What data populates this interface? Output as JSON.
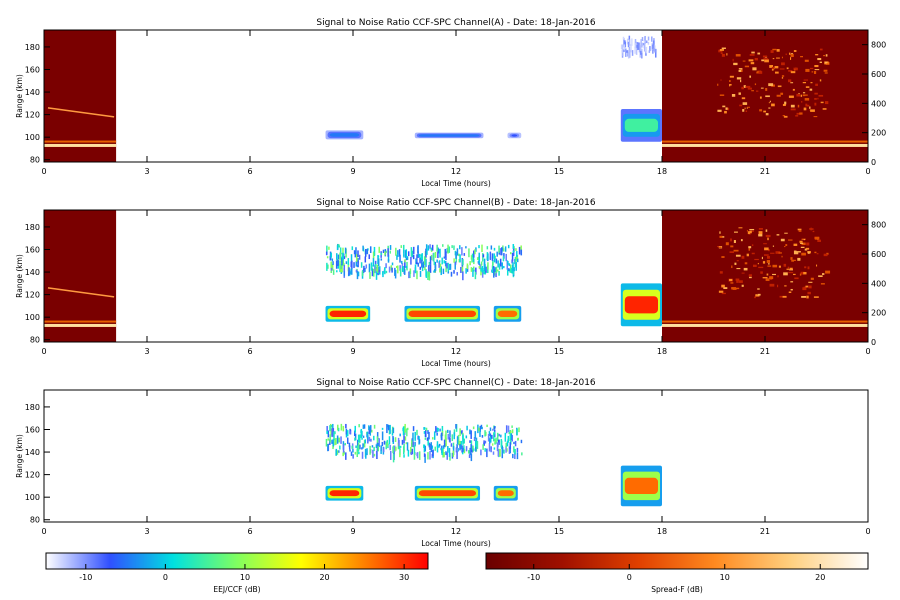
{
  "chart_data": [
    {
      "type": "heatmap",
      "title": "Signal to Noise Ratio CCF-SPC Channel(A) - Date: 18-Jan-2016",
      "xlabel": "Local Time (hours)",
      "ylabel": "Range (km)",
      "xlim": [
        0,
        24
      ],
      "ylim": [
        78,
        195
      ],
      "x_ticks": [
        "0",
        "3",
        "6",
        "9",
        "12",
        "15",
        "18",
        "21",
        "0"
      ],
      "y_ticks": [
        80,
        100,
        120,
        140,
        160,
        180
      ],
      "right_axis": {
        "ylim": [
          0,
          900
        ],
        "ticks": [
          0,
          200,
          400,
          600,
          800
        ]
      },
      "spreadf_panels": [
        [
          0,
          2.1
        ],
        [
          18,
          24
        ]
      ],
      "features": [
        {
          "kind": "layer",
          "x": [
            8.2,
            9.3
          ],
          "y": [
            98,
            106
          ],
          "level": 0.25
        },
        {
          "kind": "layer",
          "x": [
            10.8,
            12.8
          ],
          "y": [
            99,
            104
          ],
          "level": 0.25
        },
        {
          "kind": "layer",
          "x": [
            13.5,
            13.9
          ],
          "y": [
            99,
            104
          ],
          "level": 0.2
        },
        {
          "kind": "layer",
          "x": [
            16.8,
            18.0
          ],
          "y": [
            96,
            125
          ],
          "level": 0.45
        },
        {
          "kind": "patchy",
          "x": [
            16.8,
            17.8
          ],
          "y": [
            175,
            190
          ],
          "level": 0.12
        }
      ]
    },
    {
      "type": "heatmap",
      "title": "Signal to Noise Ratio CCF-SPC Channel(B) - Date: 18-Jan-2016",
      "xlabel": "Local Time (hours)",
      "ylabel": "Range (km)",
      "xlim": [
        0,
        24
      ],
      "ylim": [
        78,
        195
      ],
      "x_ticks": [
        "0",
        "3",
        "6",
        "9",
        "12",
        "15",
        "18",
        "21",
        "0"
      ],
      "y_ticks": [
        80,
        100,
        120,
        140,
        160,
        180
      ],
      "right_axis": {
        "ylim": [
          0,
          900
        ],
        "ticks": [
          0,
          200,
          400,
          600,
          800
        ]
      },
      "spreadf_panels": [
        [
          0,
          2.1
        ],
        [
          18,
          24
        ]
      ],
      "features": [
        {
          "kind": "layer",
          "x": [
            8.2,
            9.5
          ],
          "y": [
            96,
            110
          ],
          "level": 0.95
        },
        {
          "kind": "layer",
          "x": [
            10.5,
            12.7
          ],
          "y": [
            96,
            110
          ],
          "level": 0.9
        },
        {
          "kind": "layer",
          "x": [
            13.1,
            13.9
          ],
          "y": [
            96,
            110
          ],
          "level": 0.85
        },
        {
          "kind": "patchy",
          "x": [
            8.2,
            13.9
          ],
          "y": [
            140,
            165
          ],
          "level": 0.45
        },
        {
          "kind": "layer",
          "x": [
            16.8,
            18.0
          ],
          "y": [
            92,
            130
          ],
          "level": 0.95
        }
      ]
    },
    {
      "type": "heatmap",
      "title": "Signal to Noise Ratio CCF-SPC Channel(C) - Date: 18-Jan-2016",
      "xlabel": "Local Time (hours)",
      "ylabel": "Range (km)",
      "xlim": [
        0,
        24
      ],
      "ylim": [
        78,
        195
      ],
      "x_ticks": [
        "0",
        "3",
        "6",
        "9",
        "12",
        "15",
        "18",
        "21",
        "0"
      ],
      "y_ticks": [
        80,
        100,
        120,
        140,
        160,
        180
      ],
      "spreadf_panels": [],
      "features": [
        {
          "kind": "layer",
          "x": [
            8.2,
            9.3
          ],
          "y": [
            97,
            110
          ],
          "level": 0.95
        },
        {
          "kind": "layer",
          "x": [
            10.8,
            12.7
          ],
          "y": [
            97,
            110
          ],
          "level": 0.9
        },
        {
          "kind": "layer",
          "x": [
            13.1,
            13.8
          ],
          "y": [
            97,
            110
          ],
          "level": 0.85
        },
        {
          "kind": "patchy",
          "x": [
            8.2,
            13.9
          ],
          "y": [
            138,
            165
          ],
          "level": 0.45
        },
        {
          "kind": "layer",
          "x": [
            16.8,
            18.0
          ],
          "y": [
            92,
            128
          ],
          "level": 0.85
        }
      ]
    }
  ],
  "colorbars": [
    {
      "label": "EEJ/CCF (dB)",
      "range": [
        -15,
        33
      ],
      "ticks": [
        -10,
        0,
        10,
        20,
        30
      ],
      "stops": [
        "#ffffff",
        "#3050ff",
        "#00e0e0",
        "#80ff60",
        "#ffff00",
        "#ff8000",
        "#ff0000"
      ]
    },
    {
      "label": "Spread-F (dB)",
      "range": [
        -15,
        25
      ],
      "ticks": [
        -10,
        0,
        10,
        20
      ],
      "stops": [
        "#6a0000",
        "#a01000",
        "#e04000",
        "#ff8a20",
        "#ffd080",
        "#ffffff"
      ]
    }
  ]
}
